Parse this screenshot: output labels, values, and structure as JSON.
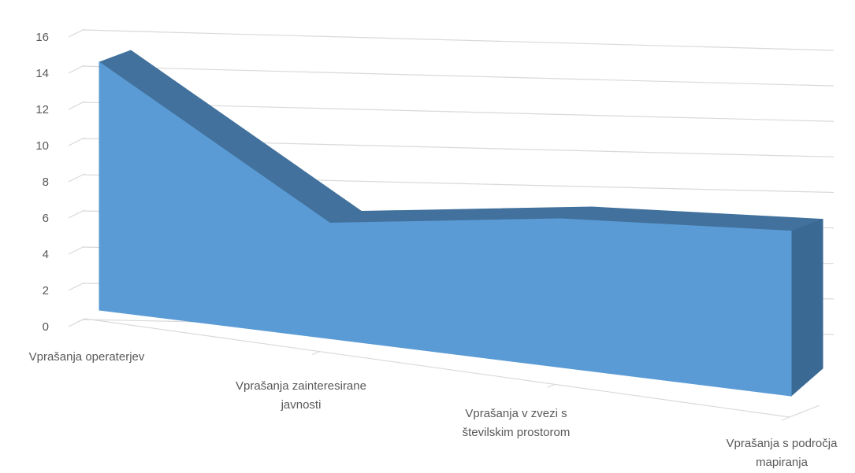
{
  "chart_data": {
    "type": "area",
    "title": "",
    "xlabel": "",
    "ylabel": "",
    "ylim": [
      0,
      16
    ],
    "y_ticks": [
      "0",
      "2",
      "4",
      "6",
      "8",
      "10",
      "12",
      "14",
      "16"
    ],
    "categories": [
      "Vprašanja operaterjev",
      "Vprašanja zainteresirane javnosti",
      "Vprašanja v zvezi s številskim prostorom",
      "Vprašanja s področja mapiranja"
    ],
    "category_lines": [
      [
        "Vprašanja operaterjev"
      ],
      [
        "Vprašanja zainteresirane",
        "javnosti"
      ],
      [
        "Vprašanja v zvezi s",
        "številskim prostorom"
      ],
      [
        "Vprašanja s področja",
        "mapiranja"
      ]
    ],
    "series": [
      {
        "values": [
          15,
          7,
          9,
          10
        ]
      }
    ],
    "grid": true,
    "legend": "none",
    "style": "3d",
    "colors": {
      "front": "#5B9BD5",
      "top": "#41719C",
      "side": "#3A6A94",
      "grid": "#D9D9D9",
      "text": "#595959"
    }
  }
}
